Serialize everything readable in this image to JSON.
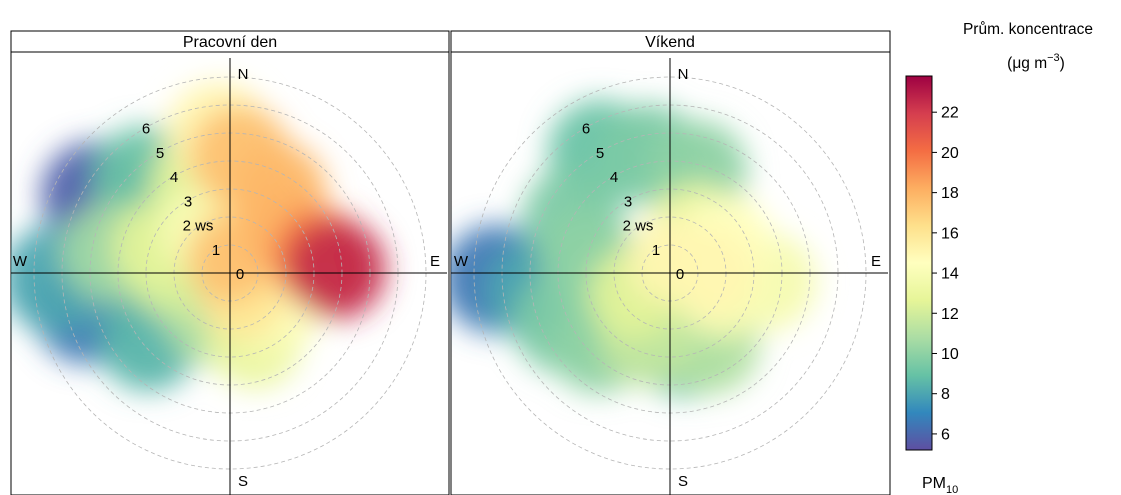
{
  "chart_data": {
    "type": "heatmap",
    "chart_kind": "polar bivariate plot",
    "panels": [
      {
        "title": "Pracovní den",
        "blobs": [
          {
            "angle": 300,
            "r": 5.6,
            "value": 5.8
          },
          {
            "angle": 318,
            "r": 4.6,
            "value": 9.0
          },
          {
            "angle": 340,
            "r": 3.3,
            "value": 12.5
          },
          {
            "angle": 355,
            "r": 5.0,
            "value": 15.0
          },
          {
            "angle": 5,
            "r": 4.2,
            "value": 17.5
          },
          {
            "angle": 30,
            "r": 3.4,
            "value": 17.8
          },
          {
            "angle": 50,
            "r": 2.5,
            "value": 18.0
          },
          {
            "angle": 80,
            "r": 3.3,
            "value": 20.0
          },
          {
            "angle": 88,
            "r": 3.8,
            "value": 22.5
          },
          {
            "angle": 100,
            "r": 2.3,
            "value": 14.5
          },
          {
            "angle": 130,
            "r": 2.0,
            "value": 14.0
          },
          {
            "angle": 160,
            "r": 2.6,
            "value": 13.0
          },
          {
            "angle": 200,
            "r": 1.8,
            "value": 11.0
          },
          {
            "angle": 230,
            "r": 3.8,
            "value": 8.5
          },
          {
            "angle": 255,
            "r": 5.3,
            "value": 6.5
          },
          {
            "angle": 268,
            "r": 6.2,
            "value": 8.0
          },
          {
            "angle": 280,
            "r": 4.3,
            "value": 10.5
          },
          {
            "angle": 290,
            "r": 2.7,
            "value": 12.5
          },
          {
            "angle": 270,
            "r": 2.0,
            "value": 12.0
          },
          {
            "angle": 330,
            "r": 1.8,
            "value": 14.0
          },
          {
            "angle": 20,
            "r": 1.5,
            "value": 15.5
          },
          {
            "angle": 0,
            "r": 0.5,
            "value": 17.5
          },
          {
            "angle": 150,
            "r": 0.9,
            "value": 16.0
          }
        ]
      },
      {
        "title": "Víkend",
        "blobs": [
          {
            "angle": 330,
            "r": 5.0,
            "value": 9.0
          },
          {
            "angle": 350,
            "r": 4.3,
            "value": 9.5
          },
          {
            "angle": 15,
            "r": 3.8,
            "value": 10.0
          },
          {
            "angle": 300,
            "r": 4.0,
            "value": 9.5
          },
          {
            "angle": 280,
            "r": 3.0,
            "value": 10.0
          },
          {
            "angle": 268,
            "r": 6.2,
            "value": 6.5
          },
          {
            "angle": 262,
            "r": 4.8,
            "value": 8.0
          },
          {
            "angle": 245,
            "r": 4.2,
            "value": 9.5
          },
          {
            "angle": 225,
            "r": 3.6,
            "value": 10.0
          },
          {
            "angle": 200,
            "r": 2.5,
            "value": 11.5
          },
          {
            "angle": 170,
            "r": 2.8,
            "value": 9.0
          },
          {
            "angle": 150,
            "r": 3.0,
            "value": 11.0
          },
          {
            "angle": 95,
            "r": 3.5,
            "value": 13.8
          },
          {
            "angle": 110,
            "r": 2.0,
            "value": 14.0
          },
          {
            "angle": 60,
            "r": 2.3,
            "value": 14.5
          },
          {
            "angle": 30,
            "r": 1.8,
            "value": 13.0
          },
          {
            "angle": 0,
            "r": 0.5,
            "value": 15.0
          },
          {
            "angle": 90,
            "r": 1.5,
            "value": 15.0
          },
          {
            "angle": 240,
            "r": 1.5,
            "value": 12.5
          }
        ]
      }
    ],
    "radial_labels": [
      "1",
      "2 ws",
      "3",
      "4",
      "5",
      "6"
    ],
    "center_label": "0",
    "compass": {
      "n": "N",
      "e": "E",
      "s": "S",
      "w": "W"
    },
    "r_max": 7,
    "legend": {
      "title_line1": "Prům. koncentrace",
      "title_line2_prefix": "(μg m",
      "title_line2_sup": "−3",
      "title_line2_suffix": ")",
      "range": [
        5.2,
        23.8
      ],
      "ticks": [
        "6",
        "8",
        "10",
        "12",
        "14",
        "16",
        "18",
        "20",
        "22"
      ],
      "placement": "right",
      "pollutant_main": "PM",
      "pollutant_sub": "10"
    },
    "colors": [
      "#5e4fa2",
      "#3288bd",
      "#66c2a5",
      "#abdda4",
      "#e6f598",
      "#ffffbf",
      "#fee08b",
      "#fdae61",
      "#f46d43",
      "#d53e4f",
      "#9e0142"
    ],
    "grid": true
  }
}
